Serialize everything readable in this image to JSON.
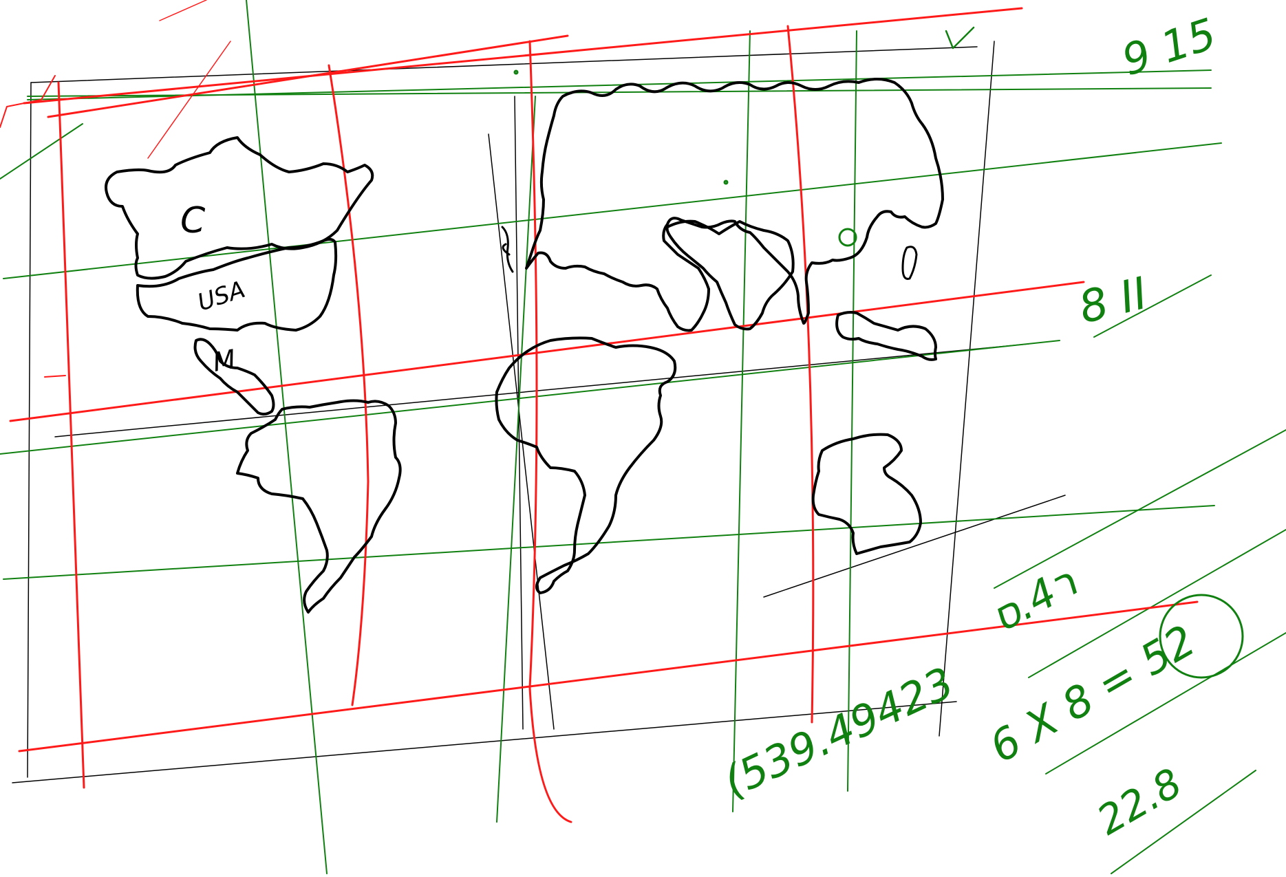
{
  "canvas": {
    "background": "#ffffff",
    "ink_colors": {
      "map": "#000000",
      "grid_red": "#ff1a1a",
      "grid_green": "#108010"
    }
  },
  "labels": {
    "canada": "C",
    "usa": "USA",
    "mexico": "M",
    "top_right": "9 15",
    "right_mid": "8 II",
    "number_a": "(539.49423",
    "number_b": "ר4.ס",
    "number_c": "6 X 8 = 52",
    "number_d": "22.8"
  }
}
